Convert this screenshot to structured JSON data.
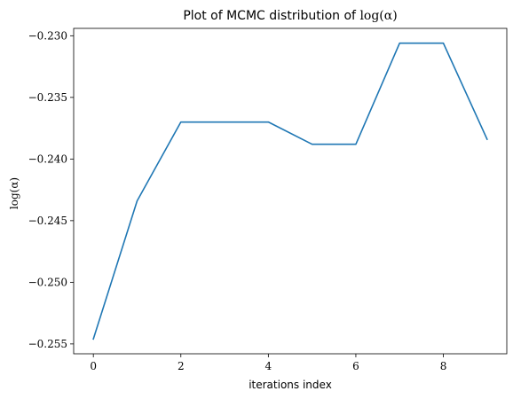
{
  "chart_data": {
    "type": "line",
    "title_prefix": "Plot of MCMC distribution of ",
    "title_math": "log(α)",
    "xlabel": "iterations index",
    "ylabel": "log(α)",
    "x": [
      0,
      1,
      2,
      3,
      4,
      5,
      6,
      7,
      8,
      9
    ],
    "series": [
      {
        "values": [
          -0.2546,
          -0.2434,
          -0.237,
          -0.237,
          -0.237,
          -0.2388,
          -0.2388,
          -0.2306,
          -0.2306,
          -0.2384
        ],
        "color": "#1f77b4"
      }
    ],
    "xlim": [
      -0.45,
      9.45
    ],
    "ylim": [
      -0.2558,
      -0.2294
    ],
    "xticks": [
      0,
      2,
      4,
      6,
      8
    ],
    "xtick_labels": [
      "0",
      "2",
      "4",
      "6",
      "8"
    ],
    "yticks": [
      -0.255,
      -0.25,
      -0.245,
      -0.24,
      -0.235,
      -0.23
    ],
    "ytick_labels": [
      "−0.255",
      "−0.250",
      "−0.245",
      "−0.240",
      "−0.235",
      "−0.230"
    ],
    "grid": false,
    "legend": false
  }
}
